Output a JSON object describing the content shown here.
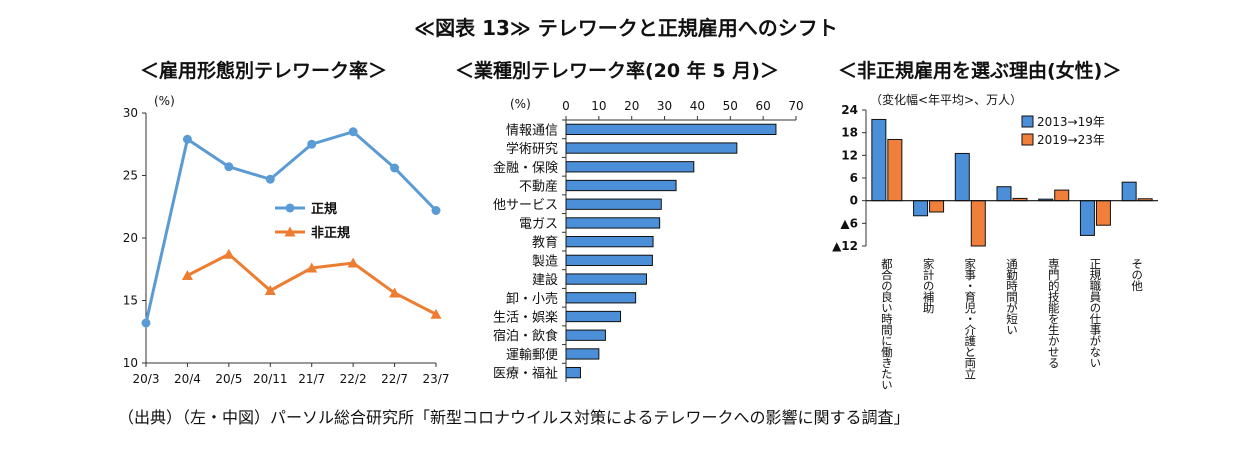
{
  "title": "≪図表 13≫ テレワークと正規雇用へのシフト",
  "source": "（出典）（左・中図）パーソル総合研究所「新型コロナウイルス対策によるテレワークへの影響に関する調査」",
  "colors": {
    "blue": "#5b9bd5",
    "orange": "#ed7d31",
    "bar_blue": "#4a8fd8",
    "bar_orange": "#f07f3c"
  },
  "chart_data": [
    {
      "type": "line",
      "subtitle": "＜雇用形態別テレワーク率＞",
      "unit_label": "(%)",
      "categories": [
        "20/3",
        "20/4",
        "20/5",
        "20/11",
        "21/7",
        "22/2",
        "22/7",
        "23/7"
      ],
      "ylim": [
        10,
        30
      ],
      "yticks": [
        10,
        15,
        20,
        25,
        30
      ],
      "series": [
        {
          "name": "正規",
          "values": [
            13.2,
            27.9,
            25.7,
            24.7,
            27.5,
            28.5,
            25.6,
            22.2
          ]
        },
        {
          "name": "非正規",
          "values": [
            null,
            17.0,
            18.7,
            15.8,
            17.6,
            18.0,
            15.6,
            13.9
          ]
        }
      ],
      "legend": "center"
    },
    {
      "type": "bar",
      "orientation": "horizontal",
      "subtitle": "＜業種別テレワーク率(20 年 5 月)＞",
      "unit_label": "(%)",
      "xlim": [
        0,
        70
      ],
      "xticks": [
        0,
        10,
        20,
        30,
        40,
        50,
        60,
        70
      ],
      "categories": [
        "情報通信",
        "学術研究",
        "金融・保険",
        "不動産",
        "他サービス",
        "電ガス",
        "教育",
        "製造",
        "建設",
        "卸・小売",
        "生活・娯楽",
        "宿泊・飲食",
        "運輸郵便",
        "医療・福祉"
      ],
      "values": [
        63.9,
        52.0,
        38.9,
        33.5,
        29.0,
        28.5,
        26.5,
        26.3,
        24.5,
        21.2,
        16.6,
        12.0,
        10.0,
        4.4
      ]
    },
    {
      "type": "bar",
      "subtitle": "＜非正規雇用を選ぶ理由(女性)＞",
      "unit_label": "（変化幅<年平均>、万人）",
      "ylim": [
        -12,
        24
      ],
      "yticks": [
        24,
        18,
        12,
        6,
        0,
        -6,
        -12
      ],
      "ytick_labels": [
        "24",
        "18",
        "12",
        "6",
        "0",
        "▲6",
        "▲12"
      ],
      "categories": [
        "都合の良い時間に働きたい",
        "家計の補助",
        "家事・育児・介護と両立",
        "通勤時間が短い",
        "専門的技能を生かせる",
        "正規職員の仕事がない",
        "その他"
      ],
      "series": [
        {
          "name": "2013→19年",
          "values": [
            21.5,
            -4.0,
            12.5,
            3.7,
            0.4,
            -9.2,
            4.9
          ]
        },
        {
          "name": "2019→23年",
          "values": [
            16.2,
            -3.0,
            -12.0,
            0.6,
            2.8,
            -6.5,
            0.5
          ]
        }
      ],
      "legend": "top-right"
    }
  ]
}
